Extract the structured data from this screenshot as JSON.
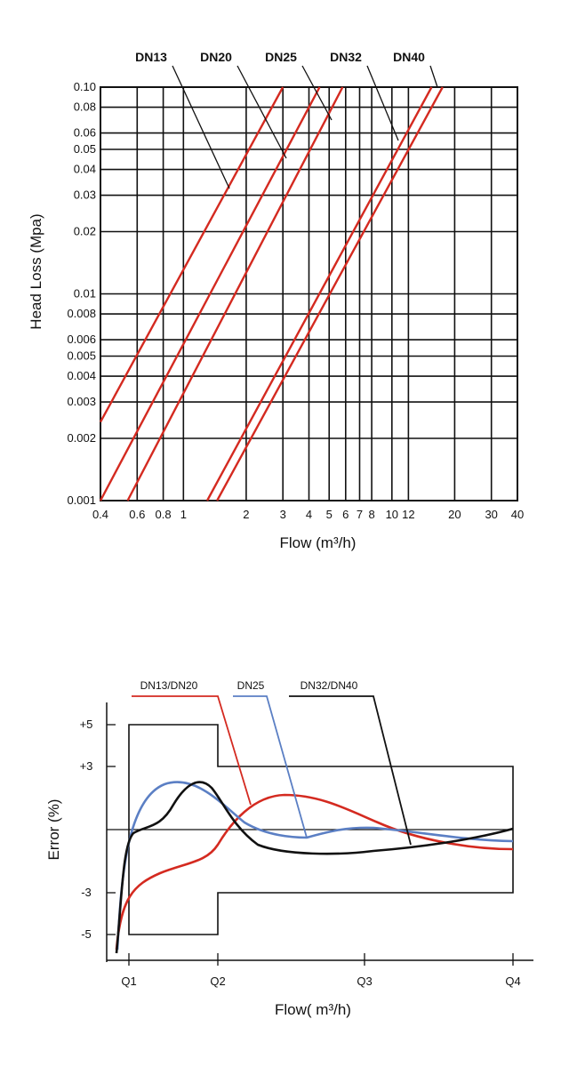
{
  "chart_data": [
    {
      "type": "line",
      "scale": "log-log",
      "xlabel": "Flow (m³/h)",
      "ylabel": "Head Loss (Mpa)",
      "xlim": [
        0.4,
        40
      ],
      "ylim": [
        0.001,
        0.1
      ],
      "grid": true,
      "color": "#d42a20",
      "leader_color": "#111111",
      "x_ticks": [
        {
          "v": 0.4,
          "t": "0.4"
        },
        {
          "v": 0.6,
          "t": "0.6"
        },
        {
          "v": 0.8,
          "t": "0.8"
        },
        {
          "v": 1,
          "t": "1"
        },
        {
          "v": 2,
          "t": "2"
        },
        {
          "v": 3,
          "t": "3"
        },
        {
          "v": 4,
          "t": "4"
        },
        {
          "v": 5,
          "t": "5"
        },
        {
          "v": 6,
          "t": "6"
        },
        {
          "v": 7,
          "t": "7"
        },
        {
          "v": 8,
          "t": "8"
        },
        {
          "v": 10,
          "t": "10"
        },
        {
          "v": 12,
          "t": "12"
        },
        {
          "v": 20,
          "t": "20"
        },
        {
          "v": 30,
          "t": "30"
        },
        {
          "v": 40,
          "t": "40"
        }
      ],
      "y_ticks": [
        {
          "v": 0.001,
          "t": "0.001"
        },
        {
          "v": 0.002,
          "t": "0.002"
        },
        {
          "v": 0.003,
          "t": "0.003"
        },
        {
          "v": 0.004,
          "t": "0.004"
        },
        {
          "v": 0.005,
          "t": "0.005"
        },
        {
          "v": 0.006,
          "t": "0.006"
        },
        {
          "v": 0.008,
          "t": "0.008"
        },
        {
          "v": 0.01,
          "t": "0.01"
        },
        {
          "v": 0.02,
          "t": "0.02"
        },
        {
          "v": 0.03,
          "t": "0.03"
        },
        {
          "v": 0.04,
          "t": "0.04"
        },
        {
          "v": 0.05,
          "t": "0.05"
        },
        {
          "v": 0.06,
          "t": "0.06"
        },
        {
          "v": 0.08,
          "t": "0.08"
        },
        {
          "v": 0.1,
          "t": "0.10"
        }
      ],
      "series_labels": [
        "DN13",
        "DN20",
        "DN25",
        "DN32",
        "DN40"
      ],
      "lines": [
        {
          "x": [
            0.4,
            3.0
          ],
          "y": [
            0.0024,
            0.1
          ]
        },
        {
          "x": [
            0.4,
            4.5
          ],
          "y": [
            0.001,
            0.1
          ]
        },
        {
          "x": [
            0.54,
            5.8
          ],
          "y": [
            0.001,
            0.1
          ]
        },
        {
          "x": [
            1.3,
            15.5
          ],
          "y": [
            0.001,
            0.1
          ]
        },
        {
          "x": [
            1.45,
            17.5
          ],
          "y": [
            0.001,
            0.1
          ]
        }
      ]
    },
    {
      "type": "line",
      "xlabel": "Flow( m³/h)",
      "ylabel": "Error (%)",
      "categories": [
        "Q1",
        "Q2",
        "Q3",
        "Q4"
      ],
      "y_ticks": [
        "+5",
        "+3",
        "-3",
        "-5"
      ],
      "ylim": [
        -6,
        6
      ],
      "legend": [
        "DN13/DN20",
        "DN25",
        "DN32/DN40"
      ],
      "colors": [
        "#d42a20",
        "#5b7fc4",
        "#111111"
      ],
      "note": ""
    }
  ]
}
